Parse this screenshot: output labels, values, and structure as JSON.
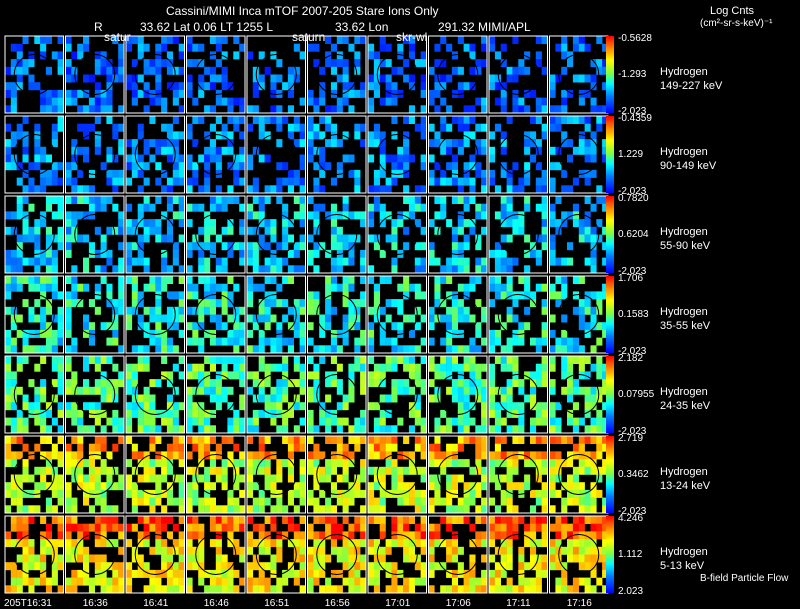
{
  "header": {
    "line1": "Cassini/MIMI Inca mTOF  2007-205   Stare   Ions Only",
    "line2_r": "R",
    "line2_lat": "33.62 Lat 0.06 LT 1255 L",
    "line2_lon": "33.62 Lon",
    "line2_lonval": "291.32  MIMI/APL",
    "units_title": "Log Cnts",
    "units": "(cm²-sr-s-keV)⁻¹"
  },
  "column_labels": [
    "satur",
    "saturn",
    "skr-wl"
  ],
  "footer_note": "B-field Particle Flow",
  "chart_data": {
    "type": "heatmap",
    "title": "Cassini/MIMI Inca mTOF 2007-205 Stare Ions Only",
    "colorbar_label": "Log Cnts (cm²-sr-s-keV)⁻¹",
    "times": [
      "205T16:31",
      "16:36",
      "16:41",
      "16:46",
      "16:51",
      "16:56",
      "17:01",
      "17:06",
      "17:11",
      "17:16"
    ],
    "rows": [
      {
        "species": "Hydrogen",
        "energy": "149-227 keV",
        "max": "-0.5628",
        "mid": "-1.293",
        "min": "-2.023",
        "level": 0.18
      },
      {
        "species": "Hydrogen",
        "energy": "90-149 keV",
        "max": "-0.4359",
        "mid": "1.229",
        "min": "-2.023",
        "level": 0.22
      },
      {
        "species": "Hydrogen",
        "energy": "55-90 keV",
        "max": "0.7820",
        "mid": "0.6204",
        "min": "-2.023",
        "level": 0.32
      },
      {
        "species": "Hydrogen",
        "energy": "35-55 keV",
        "max": "1.706",
        "mid": "0.1583",
        "min": "-2.023",
        "level": 0.38
      },
      {
        "species": "Hydrogen",
        "energy": "24-35 keV",
        "max": "2.182",
        "mid": "0.07955",
        "min": "-2.023",
        "level": 0.46
      },
      {
        "species": "Hydrogen",
        "energy": "13-24 keV",
        "max": "2.719",
        "mid": "0.3462",
        "min": "-2.023",
        "level": 0.6
      },
      {
        "species": "Hydrogen",
        "energy": "5-13 keV",
        "max": "4.246",
        "mid": "1.112",
        "min": "2.023",
        "level": 0.68
      }
    ]
  }
}
